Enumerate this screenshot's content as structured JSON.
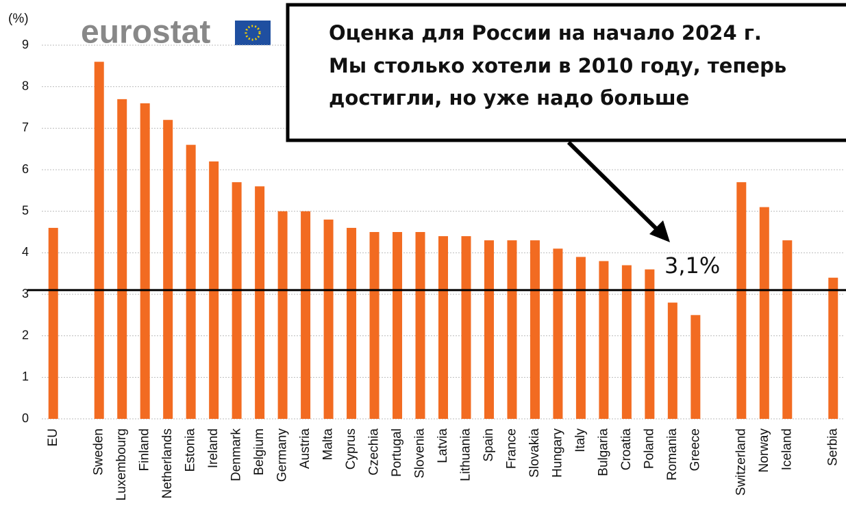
{
  "chart_data": {
    "type": "bar",
    "y_unit": "(%)",
    "source": "eurostat",
    "annotation": [
      "Оценка для России на начало 2024 г.",
      "Мы столько хотели в 2010 году, теперь",
      "достигли, но уже надо больше"
    ],
    "reference_line": {
      "value": 3.1,
      "label": "3,1%"
    },
    "categories": [
      "EU",
      null,
      "Sweden",
      "Luxembourg",
      "Finland",
      "Netherlands",
      "Estonia",
      "Ireland",
      "Denmark",
      "Belgium",
      "Germany",
      "Austria",
      "Malta",
      "Cyprus",
      "Czechia",
      "Portugal",
      "Slovenia",
      "Latvia",
      "Lithuania",
      "Spain",
      "France",
      "Slovakia",
      "Hungary",
      "Italy",
      "Bulgaria",
      "Croatia",
      "Poland",
      "Romania",
      "Greece",
      null,
      "Switzerland",
      "Norway",
      "Iceland",
      null,
      "Serbia"
    ],
    "values": [
      4.6,
      null,
      8.6,
      7.7,
      7.6,
      7.2,
      6.6,
      6.2,
      5.7,
      5.6,
      5.0,
      5.0,
      4.8,
      4.6,
      4.5,
      4.5,
      4.5,
      4.4,
      4.4,
      4.3,
      4.3,
      4.3,
      4.1,
      3.9,
      3.8,
      3.7,
      3.6,
      2.8,
      2.5,
      null,
      5.7,
      5.1,
      4.3,
      null,
      3.4
    ],
    "color": "#f26b21",
    "ylim": [
      0,
      9
    ],
    "yticks": [
      0,
      1,
      2,
      3,
      4,
      5,
      6,
      7,
      8,
      9
    ],
    "grid": true
  }
}
